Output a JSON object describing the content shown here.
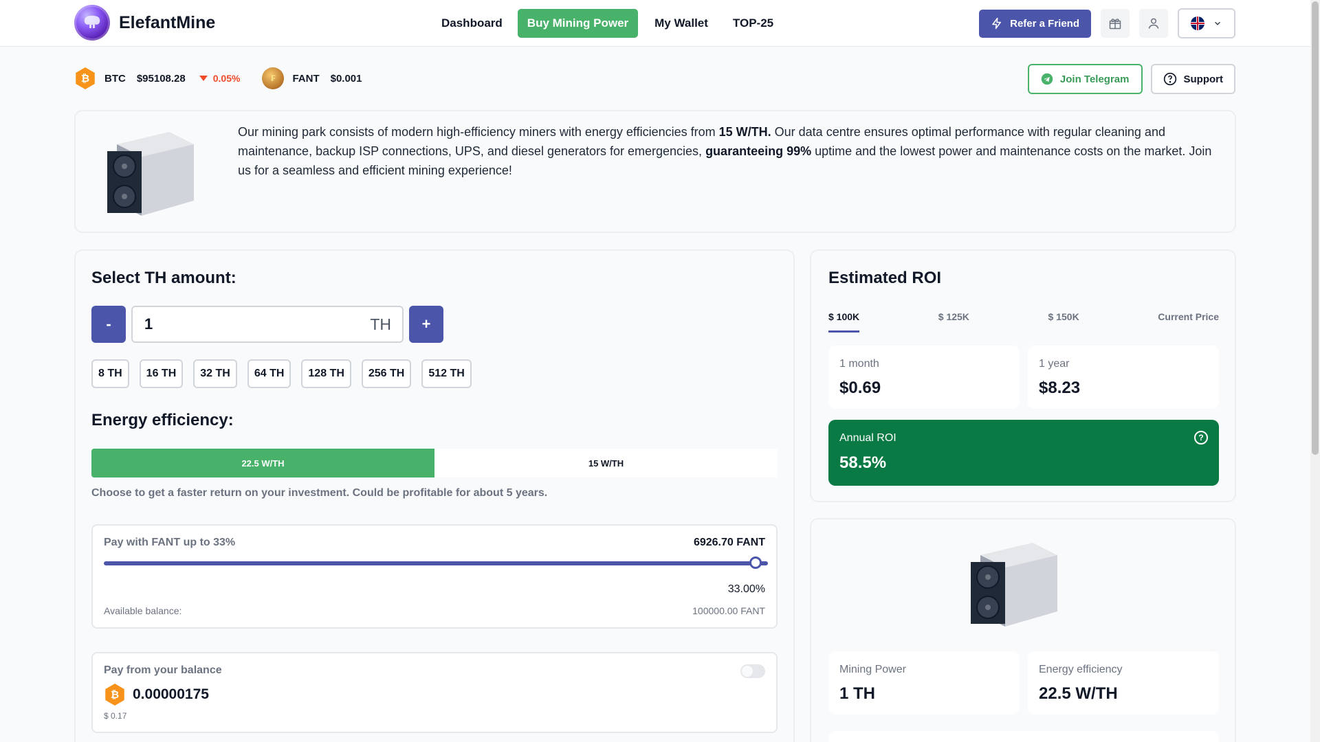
{
  "brand": {
    "name": "ElefantMine"
  },
  "nav": {
    "items": [
      {
        "label": "Dashboard"
      },
      {
        "label": "Buy Mining Power"
      },
      {
        "label": "My Wallet"
      },
      {
        "label": "TOP-25"
      }
    ]
  },
  "header": {
    "refer_label": "Refer a Friend",
    "gift_icon": "gift-icon",
    "user_icon": "user-icon",
    "language_icon": "uk-flag-icon"
  },
  "ticker": {
    "btc": {
      "symbol": "BTC",
      "price": "$95108.28",
      "change": "0.05%"
    },
    "fant": {
      "symbol": "FANT",
      "price": "$0.001"
    }
  },
  "actions": {
    "telegram_label": "Join Telegram",
    "support_label": "Support"
  },
  "info": {
    "text_1": "Our mining park consists of modern high-efficiency miners with energy efficiencies from ",
    "bold_1": "15 W/TH.",
    "text_2": " Our data centre ensures optimal performance with regular cleaning and maintenance, backup ISP connections, UPS, and diesel generators for emergencies, ",
    "bold_2": "guaranteeing 99%",
    "text_3": " uptime and the lowest power and maintenance costs on the market. Join us for a seamless and efficient mining experience!"
  },
  "purchase": {
    "title": "Select TH amount:",
    "minus": "-",
    "plus": "+",
    "amount": "1",
    "unit": "TH",
    "presets": [
      "8 TH",
      "16 TH",
      "32 TH",
      "64 TH",
      "128 TH",
      "256 TH",
      "512 TH"
    ],
    "efficiency_title": "Energy efficiency:",
    "efficiency_options": [
      "22.5 W/TH",
      "15 W/TH"
    ],
    "efficiency_selected": "22.5 W/TH",
    "efficiency_note": "Choose to get a faster return on your investment. Could be profitable for about 5 years.",
    "fant": {
      "label": "Pay with FANT up to 33%",
      "amount": "6926.70 FANT",
      "percent": "33.00%",
      "slider_fraction": 1.0,
      "available_label": "Available balance:",
      "available_value": "100000.00 FANT"
    },
    "balance": {
      "label": "Pay from your balance",
      "enabled": false,
      "value": "0.00000175",
      "usd": "$ 0.17"
    }
  },
  "roi": {
    "title": "Estimated ROI",
    "tabs": [
      "$ 100K",
      "$ 125K",
      "$ 150K",
      "Current Price"
    ],
    "active_tab": "$ 100K",
    "month_label": "1 month",
    "month_value": "$0.69",
    "year_label": "1 year",
    "year_value": "$8.23",
    "annual_label": "Annual ROI",
    "annual_value": "58.5%"
  },
  "miner": {
    "power_label": "Mining Power",
    "power_value": "1 TH",
    "efficiency_label": "Energy efficiency",
    "efficiency_value": "22.5 W/TH"
  },
  "colors": {
    "accent": "#4b55a9",
    "green": "#48b16a",
    "dark_green": "#0a7a45",
    "negative": "#ef4b2b",
    "btc": "#f7931a"
  }
}
